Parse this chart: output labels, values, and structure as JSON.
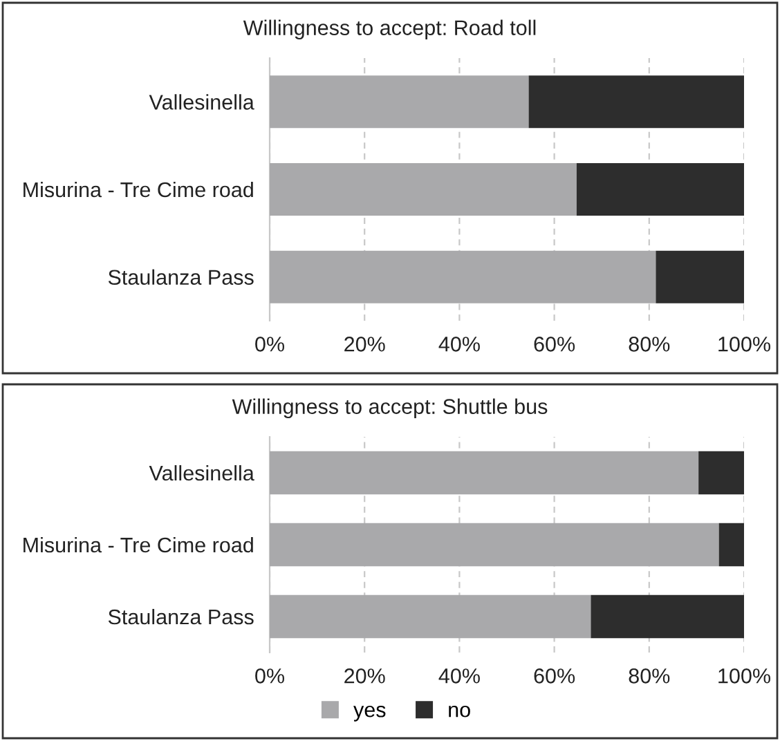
{
  "chart_data": [
    {
      "type": "bar",
      "orientation": "horizontal",
      "stacked": true,
      "title": "Willingness to accept: Road toll",
      "categories": [
        "Vallesinella",
        "Misurina - Tre Cime road",
        "Staulanza Pass"
      ],
      "series": [
        {
          "color": "#a9a9ab",
          "values": [
            54.6,
            64.7,
            81.4
          ]
        },
        {
          "color": "#2d2d2d",
          "values": [
            45.4,
            35.3,
            18.6
          ]
        }
      ],
      "xlim": [
        0,
        100
      ],
      "xticks": [
        {
          "value": 0,
          "label": "0%"
        },
        {
          "value": 20,
          "label": "20%"
        },
        {
          "value": 40,
          "label": "40%"
        },
        {
          "value": 60,
          "label": "60%"
        },
        {
          "value": 80,
          "label": "80%"
        },
        {
          "value": 100,
          "label": "100%"
        }
      ],
      "grid": "x",
      "legend": false
    },
    {
      "type": "bar",
      "orientation": "horizontal",
      "stacked": true,
      "title": "Willingness to accept: Shuttle bus",
      "categories": [
        "Vallesinella",
        "Misurina - Tre Cime road",
        "Staulanza Pass"
      ],
      "series": [
        {
          "name": "yes",
          "color": "#a9a9ab",
          "values": [
            90.4,
            94.7,
            67.7
          ]
        },
        {
          "name": "no",
          "color": "#2d2d2d",
          "values": [
            9.6,
            5.3,
            32.3
          ]
        }
      ],
      "xlim": [
        0,
        100
      ],
      "xticks": [
        {
          "value": 0,
          "label": "0%"
        },
        {
          "value": 20,
          "label": "20%"
        },
        {
          "value": 40,
          "label": "40%"
        },
        {
          "value": 60,
          "label": "60%"
        },
        {
          "value": 80,
          "label": "80%"
        },
        {
          "value": 100,
          "label": "100%"
        }
      ],
      "grid": "x",
      "legend": "bottom"
    }
  ]
}
